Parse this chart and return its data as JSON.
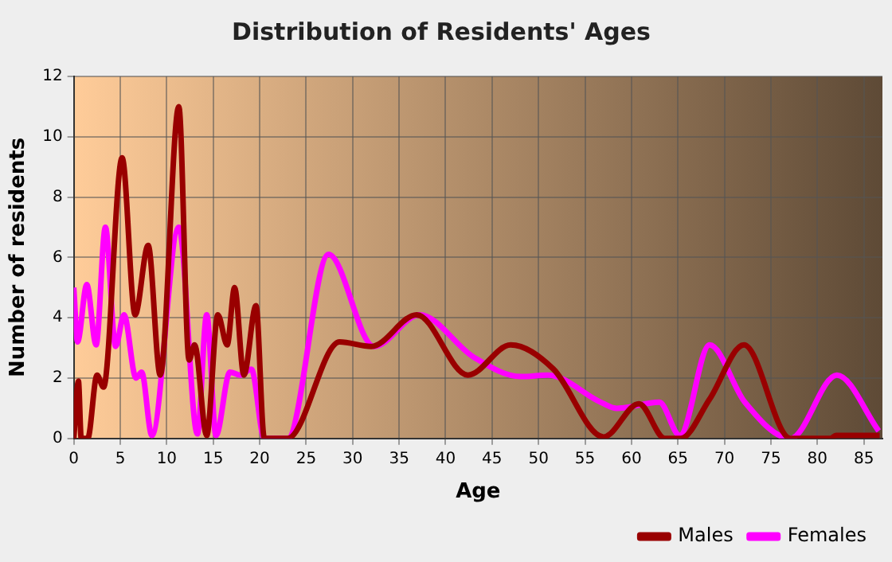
{
  "chart_data": {
    "type": "line",
    "title": "Distribution of Residents' Ages",
    "xlabel": "Age",
    "ylabel": "Number of residents",
    "xlim": [
      0,
      87
    ],
    "xticks": [
      0,
      5,
      10,
      15,
      20,
      25,
      30,
      35,
      40,
      45,
      50,
      55,
      60,
      65,
      70,
      75,
      80,
      85
    ],
    "ylim": [
      0,
      12
    ],
    "yticks": [
      0,
      2,
      4,
      6,
      8,
      10,
      12
    ],
    "grid": true,
    "legend": "bottom right",
    "marker": "none",
    "line_style": "solid",
    "series": [
      {
        "name": "Males",
        "color": "#990000",
        "x": [
          0,
          0.5,
          0.8,
          1.5,
          2.5,
          3.2,
          5.2,
          6.6,
          8,
          9.3,
          11.3,
          12.4,
          13,
          14.3,
          15.5,
          16.5,
          17.3,
          18.3,
          19.6,
          20.5,
          23,
          28.6,
          32,
          36.9,
          42.4,
          47,
          51.6,
          57,
          60.8,
          63.6,
          65.3,
          68.4,
          72.1,
          77.1,
          81.4,
          82,
          86.7
        ],
        "values": [
          0,
          1.9,
          0,
          0,
          2.1,
          1.7,
          9.3,
          4.1,
          6.4,
          2.1,
          11,
          2.6,
          3.1,
          0.1,
          4.1,
          3.1,
          5,
          2.1,
          4.4,
          0,
          0,
          3.2,
          3.05,
          4.1,
          2.1,
          3.1,
          2.3,
          0.05,
          1.15,
          0,
          0,
          1.3,
          3.1,
          0,
          0,
          0.1,
          0.1
        ]
      },
      {
        "name": "Females",
        "color": "#ff00ff",
        "x": [
          0,
          0.4,
          1.4,
          2.4,
          3.4,
          4.5,
          5.4,
          6.7,
          7.3,
          8.4,
          11.3,
          13.3,
          14.3,
          15.3,
          16.8,
          17.9,
          19.1,
          20.5,
          23,
          27.4,
          32.3,
          37.2,
          43,
          48.1,
          51,
          56.7,
          58.4,
          63,
          65.2,
          68.4,
          72.2,
          77.1,
          82.1,
          86.6
        ],
        "values": [
          5,
          3.2,
          5.1,
          3.1,
          7,
          3.05,
          4.1,
          2,
          2.2,
          0.1,
          7,
          0.15,
          4.1,
          0.1,
          2.2,
          2.1,
          2.3,
          0,
          0,
          6.1,
          3.05,
          4.1,
          2.7,
          2.05,
          2.1,
          1.2,
          1,
          1.2,
          0.1,
          3.1,
          1.2,
          0,
          2.1,
          0.25
        ]
      }
    ]
  }
}
